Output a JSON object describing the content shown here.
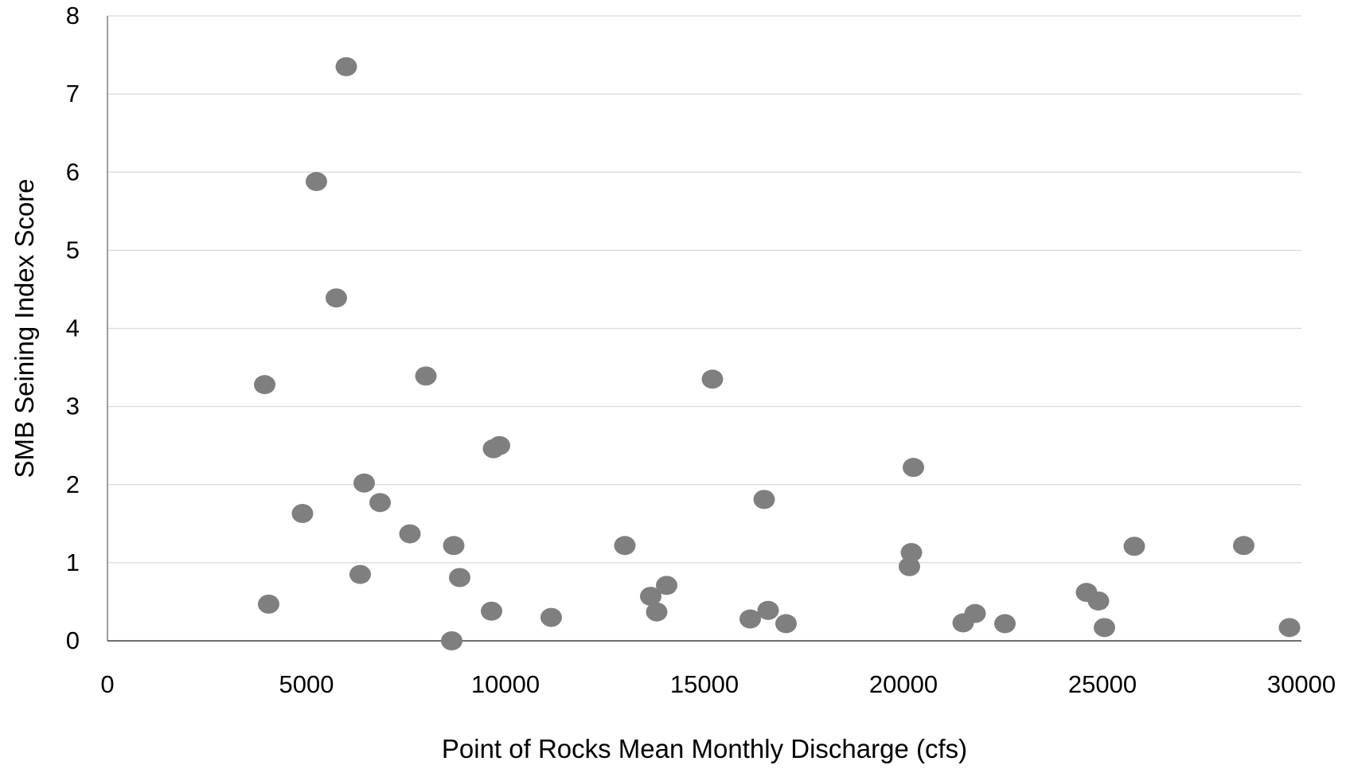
{
  "chart_data": {
    "type": "scatter",
    "title": "",
    "xlabel": "Point of Rocks Mean Monthly Discharge (cfs)",
    "ylabel": "SMB Seining Index Score",
    "xlim": [
      0,
      30000
    ],
    "ylim": [
      0,
      8
    ],
    "xticks": [
      0,
      5000,
      10000,
      15000,
      20000,
      25000,
      30000
    ],
    "yticks": [
      0,
      1,
      2,
      3,
      4,
      5,
      6,
      7,
      8
    ],
    "xtick_labels": [
      "0",
      "5000",
      "10000",
      "15000",
      "20000",
      "25000",
      "30000"
    ],
    "ytick_labels": [
      "0",
      "1",
      "2",
      "3",
      "4",
      "5",
      "6",
      "7",
      "8"
    ],
    "grid": "horizontal",
    "legend": "none",
    "marker_color": "#7f7f7f",
    "series": [
      {
        "points": [
          {
            "x": 6000,
            "y": 7.35
          },
          {
            "x": 5250,
            "y": 5.88
          },
          {
            "x": 5750,
            "y": 4.39
          },
          {
            "x": 3950,
            "y": 3.28
          },
          {
            "x": 8000,
            "y": 3.39
          },
          {
            "x": 15200,
            "y": 3.35
          },
          {
            "x": 9700,
            "y": 2.46
          },
          {
            "x": 9850,
            "y": 2.5
          },
          {
            "x": 20250,
            "y": 2.22
          },
          {
            "x": 6450,
            "y": 2.02
          },
          {
            "x": 6850,
            "y": 1.77
          },
          {
            "x": 16500,
            "y": 1.81
          },
          {
            "x": 4900,
            "y": 1.63
          },
          {
            "x": 7600,
            "y": 1.37
          },
          {
            "x": 8700,
            "y": 1.22
          },
          {
            "x": 13000,
            "y": 1.22
          },
          {
            "x": 25800,
            "y": 1.21
          },
          {
            "x": 28550,
            "y": 1.22
          },
          {
            "x": 20200,
            "y": 1.13
          },
          {
            "x": 20150,
            "y": 0.95
          },
          {
            "x": 6350,
            "y": 0.85
          },
          {
            "x": 8850,
            "y": 0.81
          },
          {
            "x": 14050,
            "y": 0.71
          },
          {
            "x": 13650,
            "y": 0.57
          },
          {
            "x": 24600,
            "y": 0.62
          },
          {
            "x": 24900,
            "y": 0.51
          },
          {
            "x": 4050,
            "y": 0.47
          },
          {
            "x": 9650,
            "y": 0.38
          },
          {
            "x": 13800,
            "y": 0.37
          },
          {
            "x": 16600,
            "y": 0.39
          },
          {
            "x": 11150,
            "y": 0.3
          },
          {
            "x": 16150,
            "y": 0.28
          },
          {
            "x": 17050,
            "y": 0.22
          },
          {
            "x": 21500,
            "y": 0.23
          },
          {
            "x": 21800,
            "y": 0.35
          },
          {
            "x": 22550,
            "y": 0.22
          },
          {
            "x": 25050,
            "y": 0.17
          },
          {
            "x": 29700,
            "y": 0.17
          },
          {
            "x": 8650,
            "y": 0.0
          }
        ]
      }
    ]
  }
}
